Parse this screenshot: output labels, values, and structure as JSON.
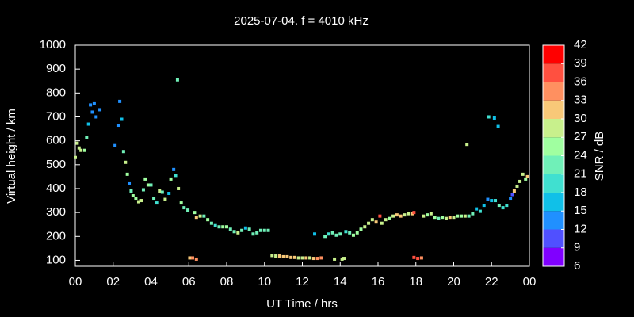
{
  "chart_data": {
    "type": "scatter",
    "title": "2025-07-04. f = 4010 kHz",
    "xlabel": "UT Time / hrs",
    "ylabel": "Virtual height / km",
    "colorbar_label": "SNR / dB",
    "xlim": [
      0,
      24
    ],
    "ylim": [
      75,
      1000
    ],
    "xticks": [
      {
        "value": 0,
        "label": "00"
      },
      {
        "value": 2,
        "label": "02"
      },
      {
        "value": 4,
        "label": "04"
      },
      {
        "value": 6,
        "label": "06"
      },
      {
        "value": 8,
        "label": "08"
      },
      10,
      12,
      14,
      16,
      18,
      20,
      22,
      {
        "value": 24,
        "label": "00"
      }
    ],
    "yticks": [
      100,
      200,
      300,
      400,
      500,
      600,
      700,
      800,
      900,
      1000
    ],
    "clim": [
      6,
      42
    ],
    "cticks": [
      6,
      9,
      12,
      15,
      18,
      21,
      24,
      27,
      30,
      33,
      36,
      39,
      42
    ],
    "colors": [
      "#8000ff",
      "#5050ff",
      "#2090ff",
      "#10c0e8",
      "#40e0d0",
      "#70f0b8",
      "#a0ffa0",
      "#c8f08c",
      "#f8c878",
      "#ff9060",
      "#ff5040",
      "#ff0000"
    ],
    "series": [
      {
        "x": [
          0.0,
          0.1,
          0.2,
          0.3,
          0.5,
          0.6,
          0.7,
          0.8,
          0.9,
          1.0,
          1.1,
          1.3,
          2.1,
          2.3,
          2.35,
          2.45,
          2.55,
          2.65,
          2.75,
          2.85,
          2.95,
          3.05,
          3.2,
          3.35,
          3.5,
          3.6,
          3.7,
          3.85,
          4.0,
          4.15,
          4.3,
          4.45,
          4.6,
          4.75,
          4.95,
          5.05,
          5.2,
          5.3,
          5.45,
          5.4,
          5.6,
          5.75,
          5.95,
          6.05,
          6.2,
          6.4,
          6.3,
          6.4,
          6.6,
          6.8,
          7.0,
          7.2,
          7.4,
          7.6,
          7.8,
          8.0,
          8.2,
          8.4,
          8.6,
          8.8,
          9.0,
          9.2,
          9.4,
          9.6,
          9.8,
          10.0,
          10.2,
          10.4,
          10.6,
          10.8,
          11.0,
          11.2,
          11.4,
          11.6,
          11.8,
          12.0,
          12.2,
          12.4,
          12.6,
          12.8,
          13.0,
          12.65,
          13.2,
          13.4,
          13.6,
          13.8,
          14.0,
          14.1,
          14.2,
          13.7,
          14.3,
          14.5,
          14.7,
          14.9,
          15.1,
          15.3,
          15.5,
          15.7,
          15.9,
          16.1,
          16.2,
          16.4,
          16.6,
          16.8,
          17.0,
          17.2,
          17.4,
          17.6,
          17.8,
          17.9,
          17.9,
          18.1,
          18.3,
          18.4,
          18.6,
          18.8,
          19.0,
          19.2,
          19.4,
          19.6,
          19.8,
          20.0,
          20.2,
          20.4,
          20.6,
          20.7,
          20.8,
          21.0,
          21.2,
          21.4,
          21.6,
          21.8,
          21.85,
          22.0,
          22.15,
          22.2,
          22.35,
          22.4,
          22.6,
          22.8,
          23.0,
          23.1,
          23.2,
          23.35,
          23.5,
          23.65,
          23.8,
          23.9
        ],
        "values": [
          530,
          590,
          570,
          560,
          560,
          615,
          670,
          750,
          720,
          755,
          700,
          730,
          580,
          665,
          765,
          690,
          555,
          510,
          460,
          420,
          390,
          370,
          360,
          345,
          350,
          395,
          440,
          415,
          415,
          360,
          340,
          390,
          385,
          355,
          380,
          440,
          480,
          455,
          400,
          855,
          340,
          320,
          310,
          110,
          110,
          105,
          300,
          280,
          285,
          285,
          270,
          255,
          245,
          240,
          240,
          240,
          230,
          220,
          215,
          225,
          235,
          230,
          210,
          215,
          225,
          225,
          225,
          120,
          118,
          118,
          115,
          115,
          112,
          112,
          110,
          110,
          110,
          110,
          108,
          108,
          110,
          210,
          200,
          210,
          215,
          205,
          210,
          105,
          108,
          105,
          220,
          215,
          205,
          215,
          230,
          240,
          255,
          270,
          260,
          285,
          255,
          270,
          275,
          285,
          290,
          285,
          290,
          295,
          295,
          300,
          112,
          108,
          110,
          285,
          290,
          295,
          280,
          275,
          280,
          275,
          280,
          280,
          285,
          285,
          285,
          585,
          285,
          295,
          315,
          305,
          330,
          355,
          700,
          350,
          695,
          350,
          660,
          330,
          320,
          330,
          360,
          375,
          390,
          410,
          430,
          460,
          440,
          450
        ],
        "snr": [
          27,
          27,
          27,
          27,
          24,
          21,
          15,
          12,
          12,
          12,
          12,
          12,
          12,
          12,
          12,
          15,
          21,
          27,
          24,
          12,
          21,
          24,
          24,
          27,
          27,
          21,
          24,
          24,
          21,
          21,
          18,
          27,
          21,
          27,
          15,
          24,
          12,
          18,
          27,
          21,
          24,
          21,
          21,
          30,
          33,
          33,
          24,
          30,
          27,
          21,
          24,
          21,
          18,
          21,
          24,
          24,
          21,
          21,
          27,
          21,
          15,
          21,
          21,
          21,
          21,
          21,
          21,
          27,
          27,
          30,
          30,
          30,
          30,
          30,
          27,
          27,
          30,
          27,
          30,
          33,
          33,
          15,
          21,
          18,
          21,
          21,
          21,
          27,
          27,
          27,
          18,
          21,
          24,
          24,
          24,
          27,
          27,
          27,
          30,
          36,
          27,
          27,
          24,
          27,
          30,
          30,
          27,
          27,
          30,
          36,
          36,
          36,
          33,
          27,
          24,
          27,
          24,
          21,
          24,
          27,
          30,
          27,
          24,
          24,
          27,
          27,
          21,
          21,
          15,
          18,
          15,
          12,
          18,
          15,
          15,
          18,
          15,
          21,
          18,
          18,
          12,
          9,
          30,
          27,
          27,
          27,
          24,
          30
        ]
      }
    ]
  }
}
